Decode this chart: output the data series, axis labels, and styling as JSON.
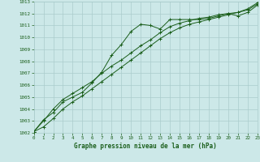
{
  "xlabel": "Graphe pression niveau de la mer (hPa)",
  "ylim": [
    1002,
    1013
  ],
  "xlim": [
    0,
    23
  ],
  "yticks": [
    1002,
    1003,
    1004,
    1005,
    1006,
    1007,
    1008,
    1009,
    1010,
    1011,
    1012,
    1013
  ],
  "xticks": [
    0,
    1,
    2,
    3,
    4,
    5,
    6,
    7,
    8,
    9,
    10,
    11,
    12,
    13,
    14,
    15,
    16,
    17,
    18,
    19,
    20,
    21,
    22,
    23
  ],
  "bg_color": "#cce8e8",
  "grid_color": "#aacccc",
  "line_color": "#1a5e1a",
  "line1_x": [
    0,
    1,
    2,
    3,
    4,
    5,
    6,
    7,
    8,
    9,
    10,
    11,
    12,
    13,
    14,
    15,
    16,
    17,
    18,
    19,
    20,
    21,
    22,
    23
  ],
  "line1_y": [
    1002.1,
    1003.1,
    1003.7,
    1004.6,
    1005.0,
    1005.4,
    1006.2,
    1007.1,
    1008.5,
    1009.4,
    1010.5,
    1011.1,
    1011.0,
    1010.7,
    1011.5,
    1011.5,
    1011.5,
    1011.5,
    1011.6,
    1011.8,
    1012.0,
    1011.8,
    1012.1,
    1012.7
  ],
  "line2_x": [
    0,
    1,
    2,
    3,
    4,
    5,
    6,
    7,
    8,
    9,
    10,
    11,
    12,
    13,
    14,
    15,
    16,
    17,
    18,
    19,
    20,
    21,
    22,
    23
  ],
  "line2_y": [
    1002.1,
    1003.0,
    1004.0,
    1004.8,
    1005.3,
    1005.8,
    1006.3,
    1007.0,
    1007.6,
    1008.1,
    1008.7,
    1009.3,
    1009.8,
    1010.4,
    1010.9,
    1011.2,
    1011.4,
    1011.6,
    1011.7,
    1011.9,
    1012.0,
    1012.1,
    1012.3,
    1012.8
  ],
  "line3_x": [
    0,
    1,
    2,
    3,
    4,
    5,
    6,
    7,
    8,
    9,
    10,
    11,
    12,
    13,
    14,
    15,
    16,
    17,
    18,
    19,
    20,
    21,
    22,
    23
  ],
  "line3_y": [
    1002.1,
    1002.5,
    1003.2,
    1004.0,
    1004.6,
    1005.1,
    1005.7,
    1006.3,
    1006.9,
    1007.5,
    1008.1,
    1008.7,
    1009.3,
    1009.9,
    1010.4,
    1010.8,
    1011.1,
    1011.3,
    1011.5,
    1011.7,
    1011.9,
    1012.1,
    1012.4,
    1012.9
  ]
}
